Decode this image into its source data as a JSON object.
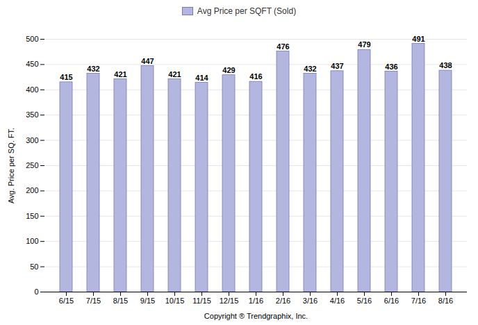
{
  "chart_data": {
    "type": "bar",
    "categories": [
      "6/15",
      "7/15",
      "8/15",
      "9/15",
      "10/15",
      "11/15",
      "12/15",
      "1/16",
      "2/16",
      "3/16",
      "4/16",
      "5/16",
      "6/16",
      "7/16",
      "8/16"
    ],
    "series": [
      {
        "name": "Avg Price per SQFT (Sold)",
        "color": "#b3b7e0",
        "values": [
          415,
          432,
          421,
          447,
          421,
          414,
          429,
          416,
          476,
          432,
          437,
          479,
          436,
          491,
          438
        ]
      }
    ],
    "ylabel": "Avg. Price per SQ. FT.",
    "xlabel": "Copyright ® Trendgraphix, Inc.",
    "ylim": [
      0,
      500
    ],
    "yticks": [
      0,
      50,
      100,
      150,
      200,
      250,
      300,
      350,
      400,
      450,
      500
    ],
    "grid": true,
    "legend": "top",
    "data_labels": true
  }
}
